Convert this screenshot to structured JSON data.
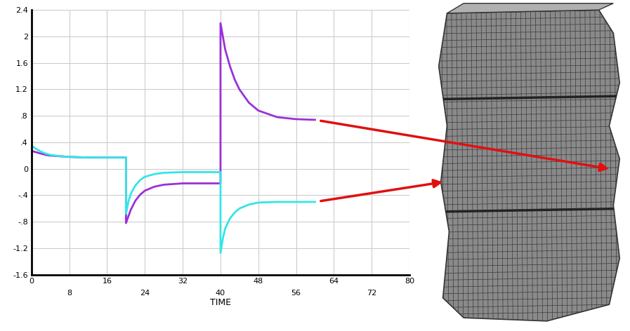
{
  "chart_data": {
    "type": "line",
    "x_label": "TIME",
    "x": [
      0,
      1,
      2,
      3,
      4,
      6,
      8,
      12,
      16,
      20,
      20,
      20.5,
      21,
      22,
      23,
      24,
      26,
      28,
      32,
      36,
      40,
      40,
      40.5,
      41,
      42,
      43,
      44,
      46,
      48,
      52,
      56,
      60
    ],
    "series": [
      {
        "color": "#9b30d9",
        "values": [
          0.27,
          0.25,
          0.23,
          0.21,
          0.2,
          0.19,
          0.18,
          0.17,
          0.17,
          0.17,
          -0.82,
          -0.72,
          -0.62,
          -0.48,
          -0.39,
          -0.33,
          -0.27,
          -0.24,
          -0.22,
          -0.22,
          -0.22,
          2.2,
          2.0,
          1.8,
          1.55,
          1.35,
          1.2,
          1.0,
          0.88,
          0.78,
          0.75,
          0.74
        ]
      },
      {
        "color": "#33e6e6",
        "values": [
          0.35,
          0.3,
          0.26,
          0.23,
          0.21,
          0.19,
          0.18,
          0.17,
          0.17,
          0.17,
          -0.68,
          -0.5,
          -0.38,
          -0.25,
          -0.17,
          -0.12,
          -0.08,
          -0.06,
          -0.05,
          -0.05,
          -0.05,
          -1.27,
          -1.05,
          -0.9,
          -0.75,
          -0.66,
          -0.6,
          -0.54,
          -0.51,
          -0.5,
          -0.5,
          -0.5
        ]
      }
    ],
    "xlim": [
      0,
      80
    ],
    "xticks": [
      0,
      8,
      16,
      24,
      32,
      40,
      48,
      56,
      64,
      72,
      80
    ],
    "ylim": [
      -1.6,
      2.4
    ],
    "yticks": [
      -1.6,
      -1.2,
      {
        "value": -0.8,
        "label": "-.8"
      },
      {
        "value": -0.4,
        "label": "-.4"
      },
      0,
      {
        "value": 0.4,
        "label": ".4"
      },
      {
        "value": 0.8,
        "label": ".8"
      },
      1.2,
      1.6,
      2,
      2.4
    ],
    "grid": true
  }
}
